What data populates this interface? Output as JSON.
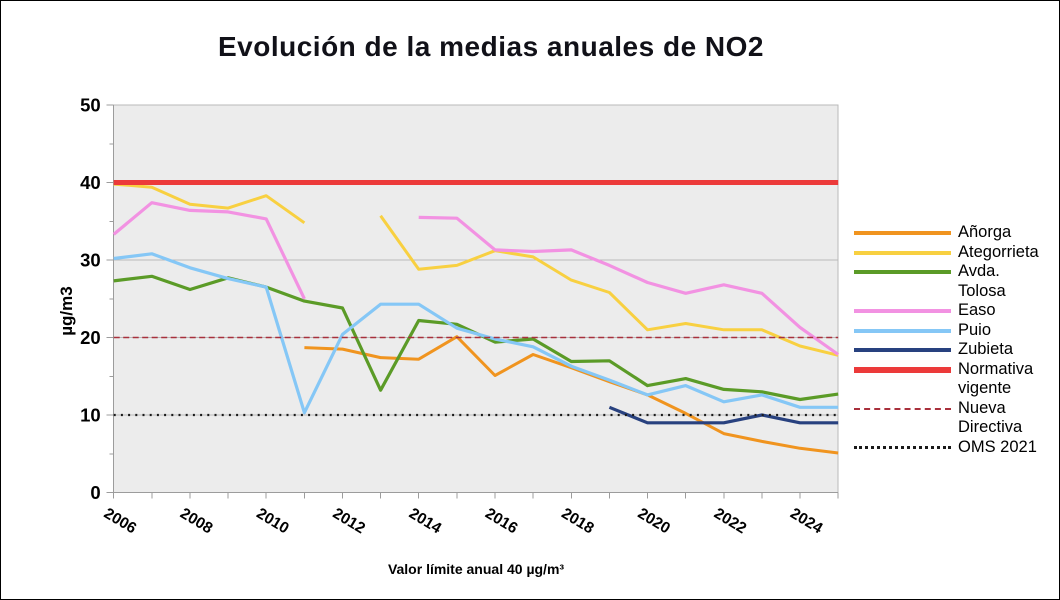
{
  "window": {
    "background": "#FFFFFF",
    "frame_color": "#000000"
  },
  "title": "Evolución de la medias anuales de NO2",
  "y_axis_title": "µg/m3",
  "x_axis_note": "Valor límite anual 40 µg/m³",
  "palette": {
    "plot_background": "#ECECEC",
    "gridline": "#BABABA",
    "axis": "#9C9C9C",
    "text": "#000000"
  },
  "chart_data": {
    "type": "line",
    "title": "Evolución de la medias anuales de NO2",
    "ylabel": "µg/m3",
    "xlabel": "Valor límite anual 40 µg/m³",
    "ylim": [
      0,
      50
    ],
    "y_ticks": [
      0,
      10,
      20,
      30,
      40,
      50
    ],
    "x_range": [
      2006,
      2025
    ],
    "x_tick_labels": [
      "2006",
      "2008",
      "2010",
      "2012",
      "2014",
      "2016",
      "2018",
      "2020",
      "2022",
      "2024"
    ],
    "grid": true,
    "legend_position": "right",
    "x": [
      2006,
      2007,
      2008,
      2009,
      2010,
      2011,
      2012,
      2013,
      2014,
      2015,
      2016,
      2017,
      2018,
      2019,
      2020,
      2021,
      2022,
      2023,
      2024,
      2025
    ],
    "series": [
      {
        "name": "Añorga",
        "color": "#F0941F",
        "width": 3,
        "style": "solid",
        "legend_lines": [
          "Añorga"
        ],
        "swatch": {
          "kind": "solid",
          "thickness": 4
        },
        "values": [
          null,
          null,
          null,
          null,
          null,
          18.7,
          18.5,
          17.4,
          17.2,
          20.1,
          15.1,
          17.8,
          16.1,
          14.3,
          12.6,
          10.2,
          7.6,
          6.6,
          5.7,
          5.1
        ]
      },
      {
        "name": "Ategorrieta",
        "color": "#F8D041",
        "width": 3,
        "style": "solid",
        "legend_lines": [
          "Ategorrieta"
        ],
        "swatch": {
          "kind": "solid",
          "thickness": 4
        },
        "values": [
          39.8,
          39.4,
          37.2,
          36.7,
          38.3,
          34.8,
          null,
          35.7,
          28.8,
          29.3,
          31.2,
          30.4,
          27.4,
          25.8,
          21.0,
          21.8,
          21.0,
          21.0,
          18.9,
          17.7
        ]
      },
      {
        "name": "Avda. Tolosa",
        "color": "#5B9B27",
        "width": 3.2,
        "style": "solid",
        "legend_lines": [
          "Avda.",
          "Tolosa"
        ],
        "swatch": {
          "kind": "solid",
          "thickness": 4
        },
        "values": [
          27.3,
          27.9,
          26.2,
          27.7,
          26.5,
          24.7,
          23.8,
          13.2,
          22.2,
          21.7,
          19.4,
          19.8,
          16.9,
          17.0,
          13.8,
          14.7,
          13.3,
          13.0,
          12.0,
          12.7
        ]
      },
      {
        "name": "Easo",
        "color": "#F292E2",
        "width": 3.2,
        "style": "solid",
        "legend_lines": [
          "Easo"
        ],
        "swatch": {
          "kind": "solid",
          "thickness": 4
        },
        "values": [
          33.3,
          37.4,
          36.4,
          36.2,
          35.3,
          25.0,
          null,
          null,
          35.5,
          35.4,
          31.3,
          31.1,
          31.3,
          29.3,
          27.1,
          25.7,
          26.8,
          25.7,
          21.3,
          17.8
        ]
      },
      {
        "name": "Puio",
        "color": "#85C7F6",
        "width": 3.2,
        "style": "solid",
        "legend_lines": [
          "Puio"
        ],
        "swatch": {
          "kind": "solid",
          "thickness": 4
        },
        "values": [
          30.2,
          30.8,
          29.0,
          27.6,
          26.5,
          10.3,
          20.4,
          24.3,
          24.3,
          21.2,
          19.8,
          18.8,
          16.3,
          14.5,
          12.6,
          13.8,
          11.7,
          12.6,
          11.0,
          11.0
        ]
      },
      {
        "name": "Zubieta",
        "color": "#28417F",
        "width": 3.2,
        "style": "solid",
        "legend_lines": [
          "Zubieta"
        ],
        "swatch": {
          "kind": "solid",
          "thickness": 4
        },
        "values": [
          null,
          null,
          null,
          null,
          null,
          null,
          null,
          null,
          null,
          null,
          null,
          null,
          null,
          11.0,
          9.0,
          9.0,
          9.0,
          10.0,
          9.0,
          9.0
        ]
      },
      {
        "name": "Normativa vigente",
        "color": "#EC3A3A",
        "width": 5,
        "style": "solid",
        "legend_lines": [
          "Normativa",
          "vigente"
        ],
        "swatch": {
          "kind": "solid",
          "thickness": 6
        },
        "constant": 40
      },
      {
        "name": "Nueva Directiva",
        "color": "#A8303C",
        "width": 1.6,
        "style": "dashed",
        "legend_lines": [
          "Nueva",
          "Directiva"
        ],
        "swatch": {
          "kind": "dashed",
          "thickness": 2
        },
        "constant": 20
      },
      {
        "name": "OMS 2021",
        "color": "#1A1A1A",
        "width": 2.2,
        "style": "dotted",
        "legend_lines": [
          "OMS 2021"
        ],
        "swatch": {
          "kind": "dotted",
          "thickness": 3
        },
        "constant": 10
      }
    ]
  }
}
